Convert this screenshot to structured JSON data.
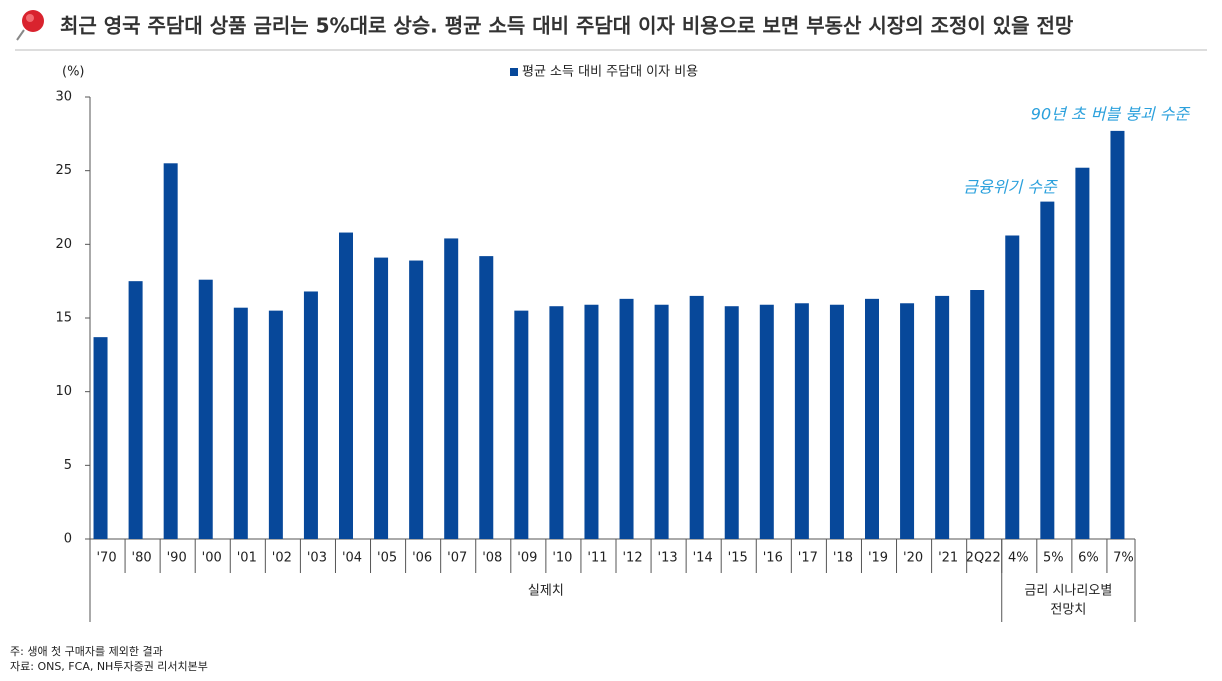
{
  "chart_data": {
    "type": "bar",
    "title": "최근 영국 주담대 상품 금리는 5%대로 상승. 평균 소득 대비 주담대 이자 비용으로 보면 부동산 시장의 조정이 있을 전망",
    "y_unit": "(%)",
    "categories": [
      "'70",
      "'80",
      "'90",
      "'00",
      "'01",
      "'02",
      "'03",
      "'04",
      "'05",
      "'06",
      "'07",
      "'08",
      "'09",
      "'10",
      "'11",
      "'12",
      "'13",
      "'14",
      "'15",
      "'16",
      "'17",
      "'18",
      "'19",
      "'20",
      "'21",
      "2Q22",
      "4%",
      "5%",
      "6%",
      "7%"
    ],
    "series": [
      {
        "name": "평균 소득 대비 주담대 이자 비용",
        "color": "#07489a",
        "values": [
          13.7,
          17.5,
          25.5,
          17.6,
          15.7,
          15.5,
          16.8,
          20.8,
          19.1,
          18.9,
          20.4,
          19.2,
          15.5,
          15.8,
          15.9,
          16.3,
          15.9,
          16.5,
          15.8,
          15.9,
          16.0,
          15.9,
          16.3,
          16.0,
          16.5,
          16.9,
          20.6,
          22.9,
          25.2,
          27.7
        ]
      }
    ],
    "ylim": [
      0,
      30
    ],
    "yticks": [
      0,
      5,
      10,
      15,
      20,
      25,
      30
    ],
    "groups": [
      {
        "lines": [
          "실제치"
        ]
      },
      {
        "lines": [
          "금리 시나리오별",
          "전망치"
        ]
      }
    ],
    "annotations": [
      "금융위기 수준",
      "90년 초 버블 붕괴 수준"
    ],
    "notes": [
      "주: 생애 첫 구매자를 제외한 결과",
      "자료: ONS, FCA, NH투자증권 리서치본부"
    ]
  }
}
